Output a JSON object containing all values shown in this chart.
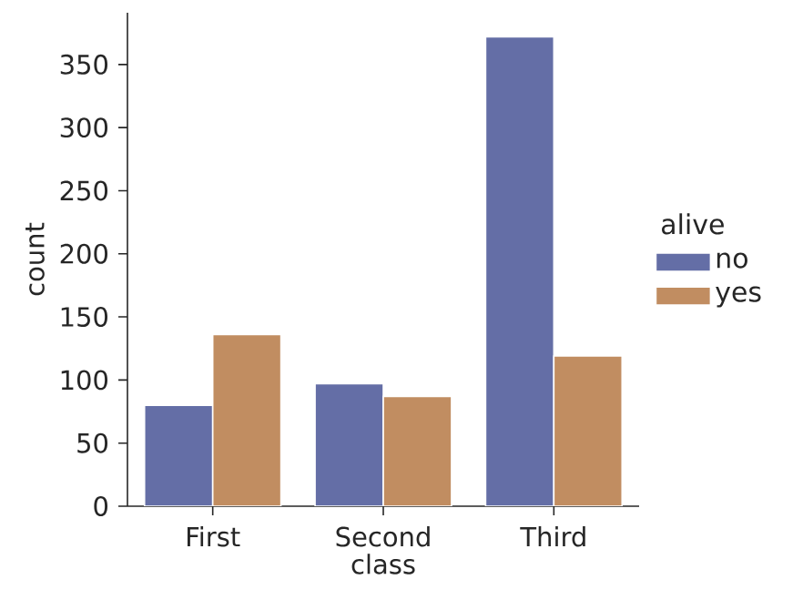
{
  "chart_data": {
    "type": "bar",
    "xlabel": "class",
    "ylabel": "count",
    "legend_title": "alive",
    "legend": "right",
    "categories": [
      "First",
      "Second",
      "Third"
    ],
    "series": [
      {
        "name": "no",
        "color": "#646ea6",
        "values": [
          80,
          97,
          372
        ]
      },
      {
        "name": "yes",
        "color": "#c18d61",
        "values": [
          136,
          87,
          119
        ]
      }
    ],
    "ylim": [
      0,
      391
    ],
    "yticks": [
      0,
      50,
      100,
      150,
      200,
      250,
      300,
      350
    ],
    "grid": false
  }
}
